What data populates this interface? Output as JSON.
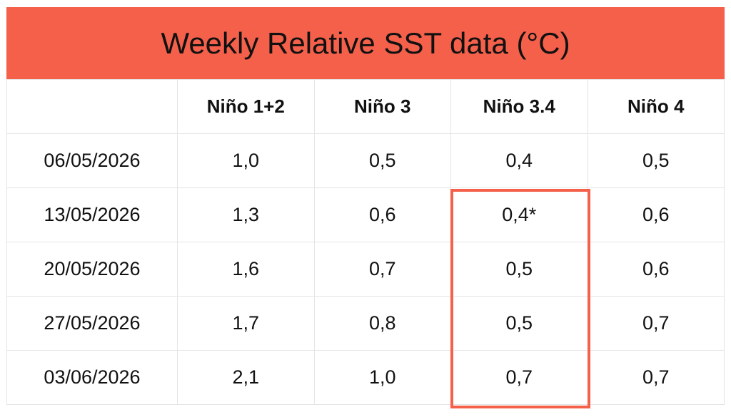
{
  "title": "Weekly Relative SST data (°C)",
  "table": {
    "columns": [
      "Niño 1+2",
      "Niño 3",
      "Niño 3.4",
      "Niño 4"
    ],
    "rows": [
      [
        "06/05/2026",
        "1,0",
        "0,5",
        "0,4",
        "0,5"
      ],
      [
        "13/05/2026",
        "1,3",
        "0,6",
        "0,4*",
        "0,6"
      ],
      [
        "20/05/2026",
        "1,6",
        "0,7",
        "0,5",
        "0,6"
      ],
      [
        "27/05/2026",
        "1,7",
        "0,8",
        "0,5",
        "0,7"
      ],
      [
        "03/06/2026",
        "2,1",
        "1,0",
        "0,7",
        "0,7"
      ]
    ]
  }
}
